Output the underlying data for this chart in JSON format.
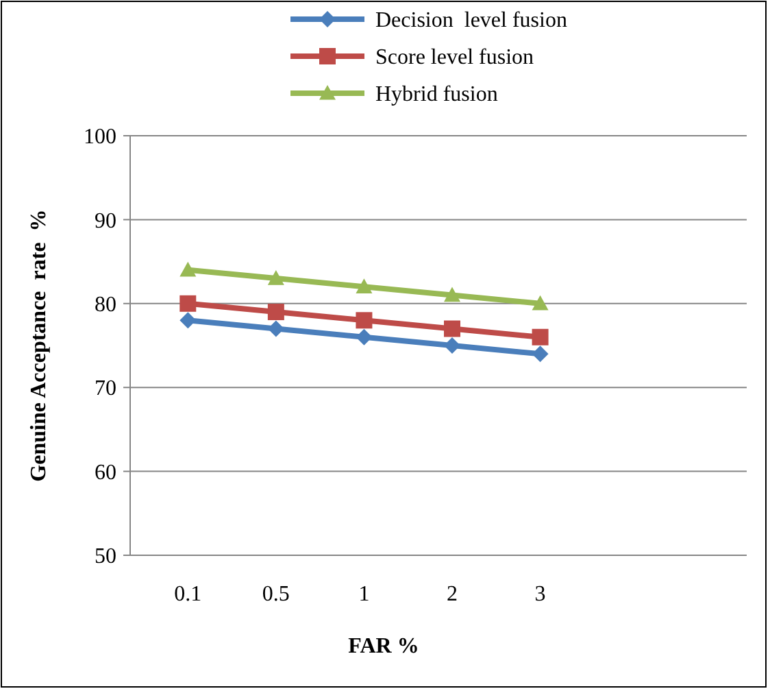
{
  "chart_data": {
    "type": "line",
    "xlabel": "FAR %",
    "ylabel": "Genuine Acceptance  rate  %",
    "categories": [
      "0.1",
      "0.5",
      "1",
      "2",
      "3",
      null,
      null
    ],
    "series": [
      {
        "name": "Decision  level fusion",
        "color": "#4a7ebb",
        "marker": "diamond",
        "values": [
          78,
          77,
          76,
          75,
          74,
          null,
          null
        ]
      },
      {
        "name": "Score level fusion",
        "color": "#be4b48",
        "marker": "square",
        "values": [
          80,
          79,
          78,
          77,
          76,
          null,
          null
        ]
      },
      {
        "name": "Hybrid fusion",
        "color": "#98b954",
        "marker": "triangle",
        "values": [
          84,
          83,
          82,
          81,
          80,
          null,
          null
        ]
      }
    ],
    "ylim": [
      50,
      100
    ],
    "yticks": [
      50,
      60,
      70,
      80,
      90,
      100
    ],
    "grid": "y",
    "legend": "top"
  }
}
